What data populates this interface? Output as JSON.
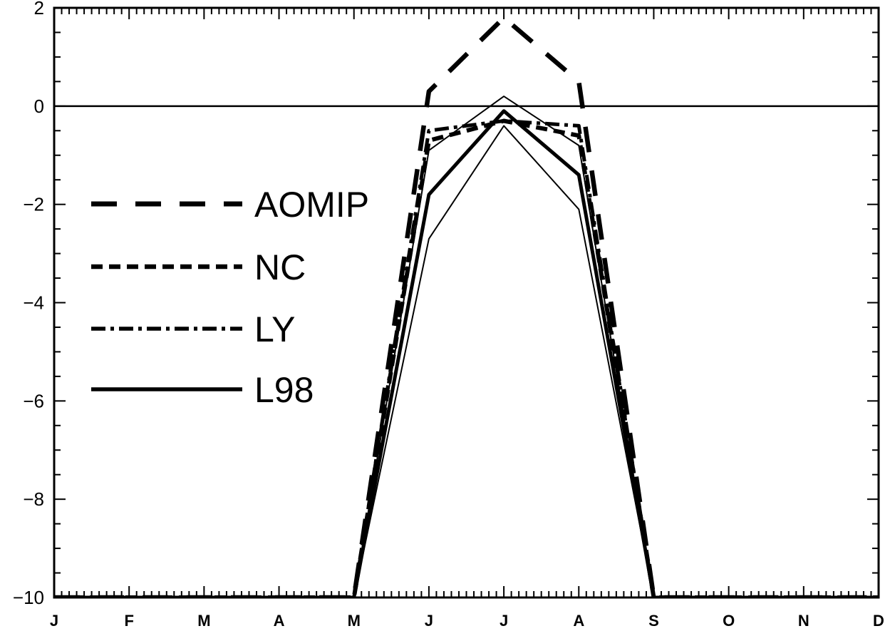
{
  "chart_data": {
    "type": "line",
    "title": "",
    "xlabel": "",
    "ylabel": "",
    "categories": [
      "J",
      "F",
      "M",
      "A",
      "M",
      "J",
      "J",
      "A",
      "S",
      "O",
      "N",
      "D"
    ],
    "x": [
      1,
      2,
      3,
      4,
      5,
      6,
      7,
      8,
      9,
      10,
      11,
      12
    ],
    "ylim": [
      -10,
      2
    ],
    "xlim": [
      1,
      12
    ],
    "yticks": [
      2,
      0,
      -2,
      -4,
      -6,
      -8,
      -10
    ],
    "ytick_labels": [
      "2",
      "0",
      "−2",
      "−4",
      "−6",
      "−8",
      "−10"
    ],
    "zero_line": true,
    "grid": false,
    "legend_position": "left-middle",
    "series": [
      {
        "name": "AOMIP",
        "style": "long-dash",
        "values": [
          -10,
          -10,
          -10,
          -10,
          -10,
          0.3,
          1.8,
          0.5,
          -10,
          -10,
          -10,
          -10
        ]
      },
      {
        "name": "NC",
        "style": "dash",
        "values": [
          -10,
          -10,
          -10,
          -10,
          -10,
          -0.7,
          -0.3,
          -0.6,
          -10,
          -10,
          -10,
          -10
        ]
      },
      {
        "name": "LY",
        "style": "dash-dot",
        "values": [
          -10,
          -10,
          -10,
          -10,
          -10,
          -0.5,
          -0.3,
          -0.4,
          -10,
          -10,
          -10,
          -10
        ]
      },
      {
        "name": "L98",
        "style": "solid",
        "values": [
          -10,
          -10,
          -10,
          -10,
          -10,
          -1.8,
          -0.1,
          -1.4,
          -10,
          -10,
          -10,
          -10
        ]
      },
      {
        "name": "",
        "style": "thin-solid",
        "values": [
          -10,
          -10,
          -10,
          -10,
          -10,
          -0.9,
          0.2,
          -0.8,
          -10,
          -10,
          -10,
          -10
        ]
      },
      {
        "name": "",
        "style": "thin-solid",
        "values": [
          -10,
          -10,
          -10,
          -10,
          -10,
          -2.7,
          -0.4,
          -2.1,
          -10,
          -10,
          -10,
          -10
        ]
      }
    ]
  }
}
